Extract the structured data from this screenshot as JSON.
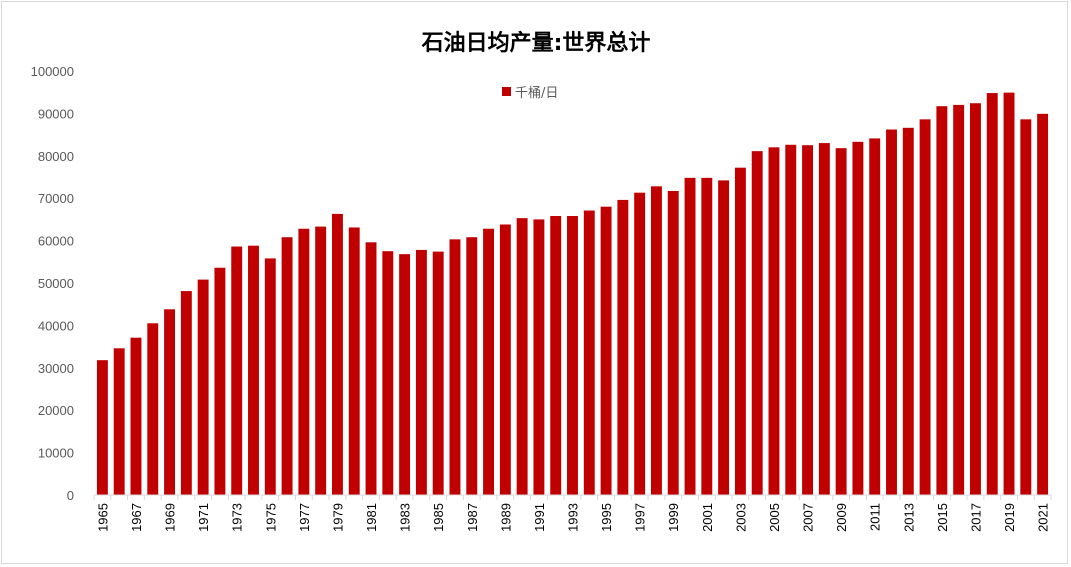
{
  "chart_data": {
    "type": "bar",
    "title": "石油日均产量:世界总计",
    "ylim": [
      0,
      100000
    ],
    "yticks": [
      0,
      10000,
      20000,
      30000,
      40000,
      50000,
      60000,
      70000,
      80000,
      90000,
      100000
    ],
    "xtick_labels": [
      "1965",
      "1967",
      "1969",
      "1971",
      "1973",
      "1975",
      "1977",
      "1979",
      "1981",
      "1983",
      "1985",
      "1987",
      "1989",
      "1991",
      "1993",
      "1995",
      "1997",
      "1999",
      "2001",
      "2003",
      "2005",
      "2007",
      "2009",
      "2011",
      "2013",
      "2015",
      "2017",
      "2019",
      "2021"
    ],
    "legend_position": "top-center",
    "series": [
      {
        "name": "千桶/日",
        "color": "#c00000",
        "categories": [
          "1965",
          "1966",
          "1967",
          "1968",
          "1969",
          "1970",
          "1971",
          "1972",
          "1973",
          "1974",
          "1975",
          "1976",
          "1977",
          "1978",
          "1979",
          "1980",
          "1981",
          "1982",
          "1983",
          "1984",
          "1985",
          "1986",
          "1987",
          "1988",
          "1989",
          "1990",
          "1991",
          "1992",
          "1993",
          "1994",
          "1995",
          "1996",
          "1997",
          "1998",
          "1999",
          "2000",
          "2001",
          "2002",
          "2003",
          "2004",
          "2005",
          "2006",
          "2007",
          "2008",
          "2009",
          "2010",
          "2011",
          "2012",
          "2013",
          "2014",
          "2015",
          "2016",
          "2017",
          "2018",
          "2019",
          "2020",
          "2021"
        ],
        "values": [
          31800,
          34600,
          37100,
          40500,
          43800,
          48100,
          50800,
          53600,
          58600,
          58800,
          55800,
          60800,
          62800,
          63300,
          66300,
          63100,
          59600,
          57500,
          56800,
          57800,
          57400,
          60300,
          60800,
          62800,
          63800,
          65300,
          65000,
          65800,
          65800,
          67100,
          68000,
          69600,
          71300,
          72800,
          71700,
          74800,
          74800,
          74200,
          77200,
          81100,
          82000,
          82600,
          82500,
          83000,
          81800,
          83300,
          84100,
          86200,
          86600,
          88600,
          91700,
          92000,
          92400,
          94800,
          94900,
          88600,
          89900
        ]
      }
    ]
  }
}
